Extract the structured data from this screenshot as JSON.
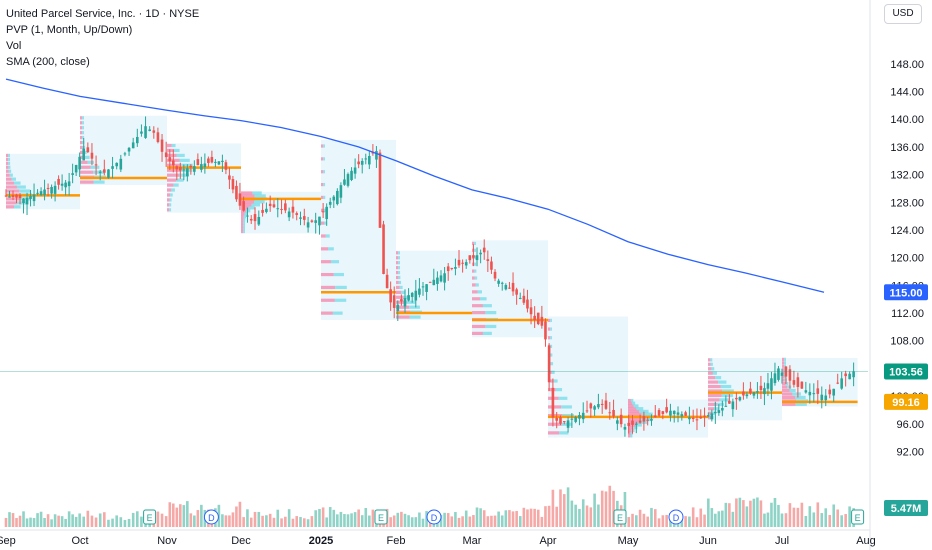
{
  "header": {
    "title": "United Parcel Service, Inc. · 1D · NYSE",
    "indicators": [
      "PVP (1, Month, Up/Down)",
      "Vol",
      "SMA (200, close)"
    ]
  },
  "currency_label": "USD",
  "colors": {
    "up": "#26a69a",
    "down": "#ef5350",
    "sma": "#2962ff",
    "poc": "#ff9800",
    "profile_bg": "#e3f4fb",
    "price_badge": "#089981",
    "sma_badge": "#2962ff",
    "poc_badge": "#f7a600"
  },
  "chart_data": {
    "type": "candlestick",
    "symbol": "UPS",
    "interval": "1D",
    "y_ticks": [
      92,
      96,
      100,
      104,
      108,
      112,
      116,
      120,
      124,
      128,
      132,
      136,
      140,
      144,
      148
    ],
    "y_range": [
      86,
      150
    ],
    "x_labels": [
      "Sep",
      "Oct",
      "Nov",
      "Dec",
      "2025",
      "Feb",
      "Mar",
      "Apr",
      "May",
      "Jun",
      "Jul",
      "Aug"
    ],
    "badges": [
      {
        "label": "115.00",
        "value": 115.0,
        "kind": "sma"
      },
      {
        "label": "103.56",
        "value": 103.56,
        "kind": "price"
      },
      {
        "label": "99.16",
        "value": 99.16,
        "kind": "poc"
      },
      {
        "label": "5.47M",
        "kind": "volume"
      }
    ],
    "events": [
      {
        "type": "E",
        "month_index": 1.8
      },
      {
        "type": "D",
        "month_index": 2.6
      },
      {
        "type": "E",
        "month_index": 4.8
      },
      {
        "type": "D",
        "month_index": 5.5
      },
      {
        "type": "E",
        "month_index": 7.9
      },
      {
        "type": "D",
        "month_index": 8.6
      },
      {
        "type": "E",
        "month_index": 10.9
      }
    ],
    "monthly_poc": [
      {
        "start": 0.0,
        "end": 1.0,
        "poc": 129.0
      },
      {
        "start": 1.0,
        "end": 2.0,
        "poc": 131.5
      },
      {
        "start": 2.0,
        "end": 3.0,
        "poc": 133.0
      },
      {
        "start": 3.0,
        "end": 4.0,
        "poc": 128.5
      },
      {
        "start": 4.0,
        "end": 5.0,
        "poc": 115.0
      },
      {
        "start": 5.0,
        "end": 6.0,
        "poc": 112.0
      },
      {
        "start": 6.0,
        "end": 7.0,
        "poc": 111.0
      },
      {
        "start": 7.0,
        "end": 8.0,
        "poc": 97.0
      },
      {
        "start": 8.0,
        "end": 9.0,
        "poc": 97.0
      },
      {
        "start": 9.0,
        "end": 10.0,
        "poc": 100.5
      },
      {
        "start": 10.0,
        "end": 10.9,
        "poc": 99.16
      }
    ],
    "sma_200": [
      [
        -0.3,
        145.8
      ],
      [
        0.5,
        144.5
      ],
      [
        1.0,
        143.3
      ],
      [
        1.5,
        142.3
      ],
      [
        2.0,
        141.3
      ],
      [
        2.5,
        140.5
      ],
      [
        3.0,
        139.8
      ],
      [
        3.5,
        138.8
      ],
      [
        4.0,
        137.5
      ],
      [
        4.5,
        136.0
      ],
      [
        5.0,
        134.0
      ],
      [
        5.5,
        131.8
      ],
      [
        6.0,
        129.8
      ],
      [
        6.5,
        128.5
      ],
      [
        7.0,
        127.0
      ],
      [
        7.5,
        124.8
      ],
      [
        8.0,
        122.3
      ],
      [
        8.5,
        120.5
      ],
      [
        9.0,
        119.0
      ],
      [
        9.5,
        117.8
      ],
      [
        10.0,
        116.5
      ],
      [
        10.5,
        115.0
      ]
    ],
    "price_path": [
      [
        0.0,
        129.0
      ],
      [
        0.3,
        128.5
      ],
      [
        0.6,
        130.0
      ],
      [
        0.9,
        131.0
      ],
      [
        1.0,
        133.5
      ],
      [
        1.1,
        136.0
      ],
      [
        1.3,
        132.0
      ],
      [
        1.5,
        134.0
      ],
      [
        1.8,
        139.0
      ],
      [
        1.9,
        138.0
      ],
      [
        2.0,
        135.0
      ],
      [
        2.2,
        132.5
      ],
      [
        2.5,
        133.5
      ],
      [
        2.8,
        134.0
      ],
      [
        3.0,
        128.0
      ],
      [
        3.2,
        125.0
      ],
      [
        3.4,
        127.5
      ],
      [
        3.7,
        126.5
      ],
      [
        3.9,
        125.0
      ],
      [
        4.0,
        125.5
      ],
      [
        4.2,
        128.5
      ],
      [
        4.4,
        132.0
      ],
      [
        4.6,
        134.0
      ],
      [
        4.8,
        135.5
      ],
      [
        4.85,
        119.0
      ],
      [
        5.0,
        112.5
      ],
      [
        5.2,
        114.5
      ],
      [
        5.5,
        116.5
      ],
      [
        5.8,
        118.5
      ],
      [
        6.0,
        119.5
      ],
      [
        6.2,
        121.0
      ],
      [
        6.35,
        117.0
      ],
      [
        6.5,
        116.0
      ],
      [
        6.7,
        114.0
      ],
      [
        6.9,
        110.5
      ],
      [
        7.0,
        110.0
      ],
      [
        7.1,
        97.0
      ],
      [
        7.2,
        96.0
      ],
      [
        7.4,
        97.0
      ],
      [
        7.7,
        99.0
      ],
      [
        8.0,
        95.5
      ],
      [
        8.3,
        96.5
      ],
      [
        8.6,
        98.0
      ],
      [
        8.9,
        96.5
      ],
      [
        9.2,
        98.0
      ],
      [
        9.5,
        100.0
      ],
      [
        9.8,
        101.0
      ],
      [
        10.0,
        104.0
      ],
      [
        10.2,
        101.5
      ],
      [
        10.4,
        100.5
      ],
      [
        10.6,
        100.0
      ],
      [
        10.75,
        102.5
      ],
      [
        10.9,
        103.56
      ]
    ],
    "volume_M": [
      3.8,
      3.9,
      6.2,
      4.3,
      4.9,
      4.1,
      5.2,
      10.0,
      4.7,
      7.3,
      6.0,
      5.6,
      5.47
    ],
    "sma_name": "SMA (200, close)"
  }
}
